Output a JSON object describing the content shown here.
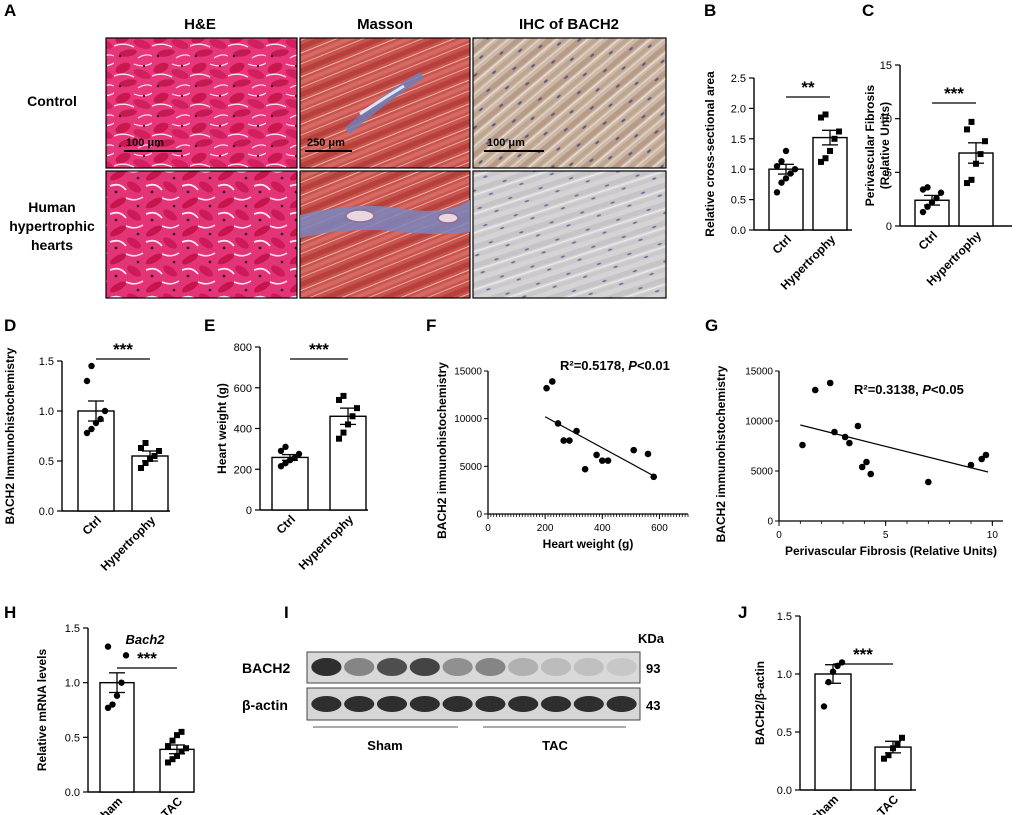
{
  "panel_letters": {
    "a": "A",
    "b": "B",
    "c": "C",
    "d": "D",
    "e": "E",
    "f": "F",
    "g": "G",
    "h": "H",
    "i": "I",
    "j": "J"
  },
  "histology": {
    "col_he": "H&E",
    "col_masson": "Masson",
    "col_ihc": "IHC of BACH2",
    "row_control": "Control",
    "row_human_1": "Human",
    "row_human_2": "hypertrophic",
    "row_human_3": "hearts",
    "scale_he": "100 μm",
    "scale_masson": "250 μm",
    "scale_ihc": "100 μm"
  },
  "chart_data": [
    {
      "id": "B",
      "type": "bar",
      "categories": [
        "Ctrl",
        "Hypertrophy"
      ],
      "values": [
        1.0,
        1.52
      ],
      "errors": [
        0.08,
        0.12
      ],
      "points": [
        [
          0.62,
          0.78,
          0.85,
          0.93,
          1.0,
          1.05,
          1.13,
          1.3
        ],
        [
          1.12,
          1.18,
          1.3,
          1.5,
          1.62,
          1.85,
          1.9
        ]
      ],
      "ylabel": "Relative cross-sectional area",
      "ylim": [
        0,
        2.5
      ],
      "yticks": [
        "0.0",
        "0.5",
        "1.0",
        "1.5",
        "2.0",
        "2.5"
      ],
      "significance": "**"
    },
    {
      "id": "C",
      "type": "bar",
      "categories": [
        "Ctrl",
        "Hypertrophy"
      ],
      "values": [
        2.4,
        6.8
      ],
      "errors": [
        0.45,
        0.95
      ],
      "points": [
        [
          1.3,
          1.8,
          2.2,
          2.6,
          3.1,
          3.4,
          3.6
        ],
        [
          4.0,
          4.3,
          5.8,
          6.7,
          7.9,
          9.0,
          9.7
        ]
      ],
      "ylabel": "Perivascular Fibrosis\n(Relative Units)",
      "ylim": [
        0,
        15
      ],
      "yticks": [
        "0",
        "5",
        "10",
        "15"
      ],
      "significance": "***"
    },
    {
      "id": "D",
      "type": "bar",
      "categories": [
        "Ctrl",
        "Hypertrophy"
      ],
      "values": [
        1.0,
        0.55
      ],
      "errors": [
        0.1,
        0.05
      ],
      "points": [
        [
          0.78,
          0.82,
          0.88,
          0.92,
          1.0,
          1.3,
          1.45
        ],
        [
          0.43,
          0.48,
          0.52,
          0.55,
          0.6,
          0.63,
          0.68
        ]
      ],
      "ylabel": "BACH2 Immunohistochemistry",
      "ylim": [
        0,
        1.5
      ],
      "yticks": [
        "0.0",
        "0.5",
        "1.0",
        "1.5"
      ],
      "significance": "***"
    },
    {
      "id": "E",
      "type": "bar",
      "categories": [
        "Ctrl",
        "Hypertrophy"
      ],
      "values": [
        258,
        460
      ],
      "errors": [
        14,
        40
      ],
      "points": [
        [
          215,
          230,
          245,
          255,
          275,
          290,
          310
        ],
        [
          350,
          380,
          420,
          460,
          500,
          540,
          560
        ]
      ],
      "ylabel": "Heart weight (g)",
      "ylim": [
        0,
        800
      ],
      "yticks": [
        "0",
        "200",
        "400",
        "600",
        "800"
      ],
      "significance": "***"
    },
    {
      "id": "F",
      "type": "scatter",
      "x": [
        205,
        225,
        245,
        265,
        285,
        310,
        340,
        380,
        400,
        420,
        510,
        560,
        580
      ],
      "y": [
        13200,
        13900,
        9500,
        7700,
        7700,
        8700,
        4700,
        6200,
        5600,
        5600,
        6700,
        6300,
        3900
      ],
      "fit": [
        [
          200,
          10200
        ],
        [
          580,
          4000
        ]
      ],
      "xlabel": "Heart weight (g)",
      "ylabel": "BACH2 immunohistochemistry",
      "xlim": [
        0,
        700
      ],
      "ylim": [
        0,
        15000
      ],
      "xticks": [
        "0",
        "200",
        "400",
        "600"
      ],
      "yticks": [
        "0",
        "5000",
        "10000",
        "15000"
      ],
      "annotation": "R²=0.5178, ",
      "annotation_p": "P",
      "annotation_rest": "<0.01"
    },
    {
      "id": "G",
      "type": "scatter",
      "x": [
        1.1,
        1.7,
        2.4,
        2.6,
        3.1,
        3.3,
        3.7,
        3.9,
        4.1,
        4.3,
        7.0,
        9.0,
        9.5,
        9.7
      ],
      "y": [
        7600,
        13100,
        13800,
        8900,
        8400,
        7800,
        9500,
        5400,
        5900,
        4700,
        3900,
        5600,
        6200,
        6600
      ],
      "fit": [
        [
          1.0,
          9600
        ],
        [
          9.8,
          4900
        ]
      ],
      "xlabel": "Perivascular Fibrosis (Relative Units)",
      "ylabel": "BACH2 immunohistochemistry",
      "xlim": [
        0,
        10.5
      ],
      "ylim": [
        0,
        15000
      ],
      "xticks": [
        "0",
        "5",
        "10"
      ],
      "yticks": [
        "0",
        "5000",
        "10000",
        "15000"
      ],
      "annotation": "R²=0.3138, ",
      "annotation_p": "P",
      "annotation_rest": "<0.05"
    },
    {
      "id": "H",
      "type": "bar",
      "title": "Bach2",
      "categories": [
        "Sham",
        "TAC"
      ],
      "values": [
        1.0,
        0.39
      ],
      "errors": [
        0.09,
        0.04
      ],
      "points": [
        [
          0.77,
          0.8,
          0.88,
          1.0,
          1.25,
          1.33
        ],
        [
          0.27,
          0.3,
          0.33,
          0.37,
          0.4,
          0.42,
          0.47,
          0.52,
          0.55
        ]
      ],
      "ylabel": "Relative mRNA levels",
      "ylim": [
        0,
        1.5
      ],
      "yticks": [
        "0.0",
        "0.5",
        "1.0",
        "1.5"
      ],
      "significance": "***"
    },
    {
      "id": "J",
      "type": "bar",
      "categories": [
        "Sham",
        "TAC"
      ],
      "values": [
        1.0,
        0.37
      ],
      "errors": [
        0.08,
        0.05
      ],
      "points": [
        [
          0.72,
          0.93,
          1.02,
          1.07,
          1.1
        ],
        [
          0.27,
          0.3,
          0.36,
          0.39,
          0.45
        ]
      ],
      "ylabel": "BACH2/β-actin",
      "ylim": [
        0,
        1.5
      ],
      "yticks": [
        "0.0",
        "0.5",
        "1.0",
        "1.5"
      ],
      "significance": "***"
    }
  ],
  "western": {
    "kda_label": "KDa",
    "band1": "BACH2",
    "band1_kda": "93",
    "band2": "β-actin",
    "band2_kda": "43",
    "group1": "Sham",
    "group2": "TAC",
    "band1_intensity": [
      0.95,
      0.55,
      0.8,
      0.85,
      0.5,
      0.55,
      0.35,
      0.3,
      0.28,
      0.25
    ],
    "band2_intensity": [
      0.95,
      0.95,
      0.95,
      0.95,
      0.95,
      0.95,
      0.95,
      0.95,
      0.95,
      0.95
    ]
  }
}
